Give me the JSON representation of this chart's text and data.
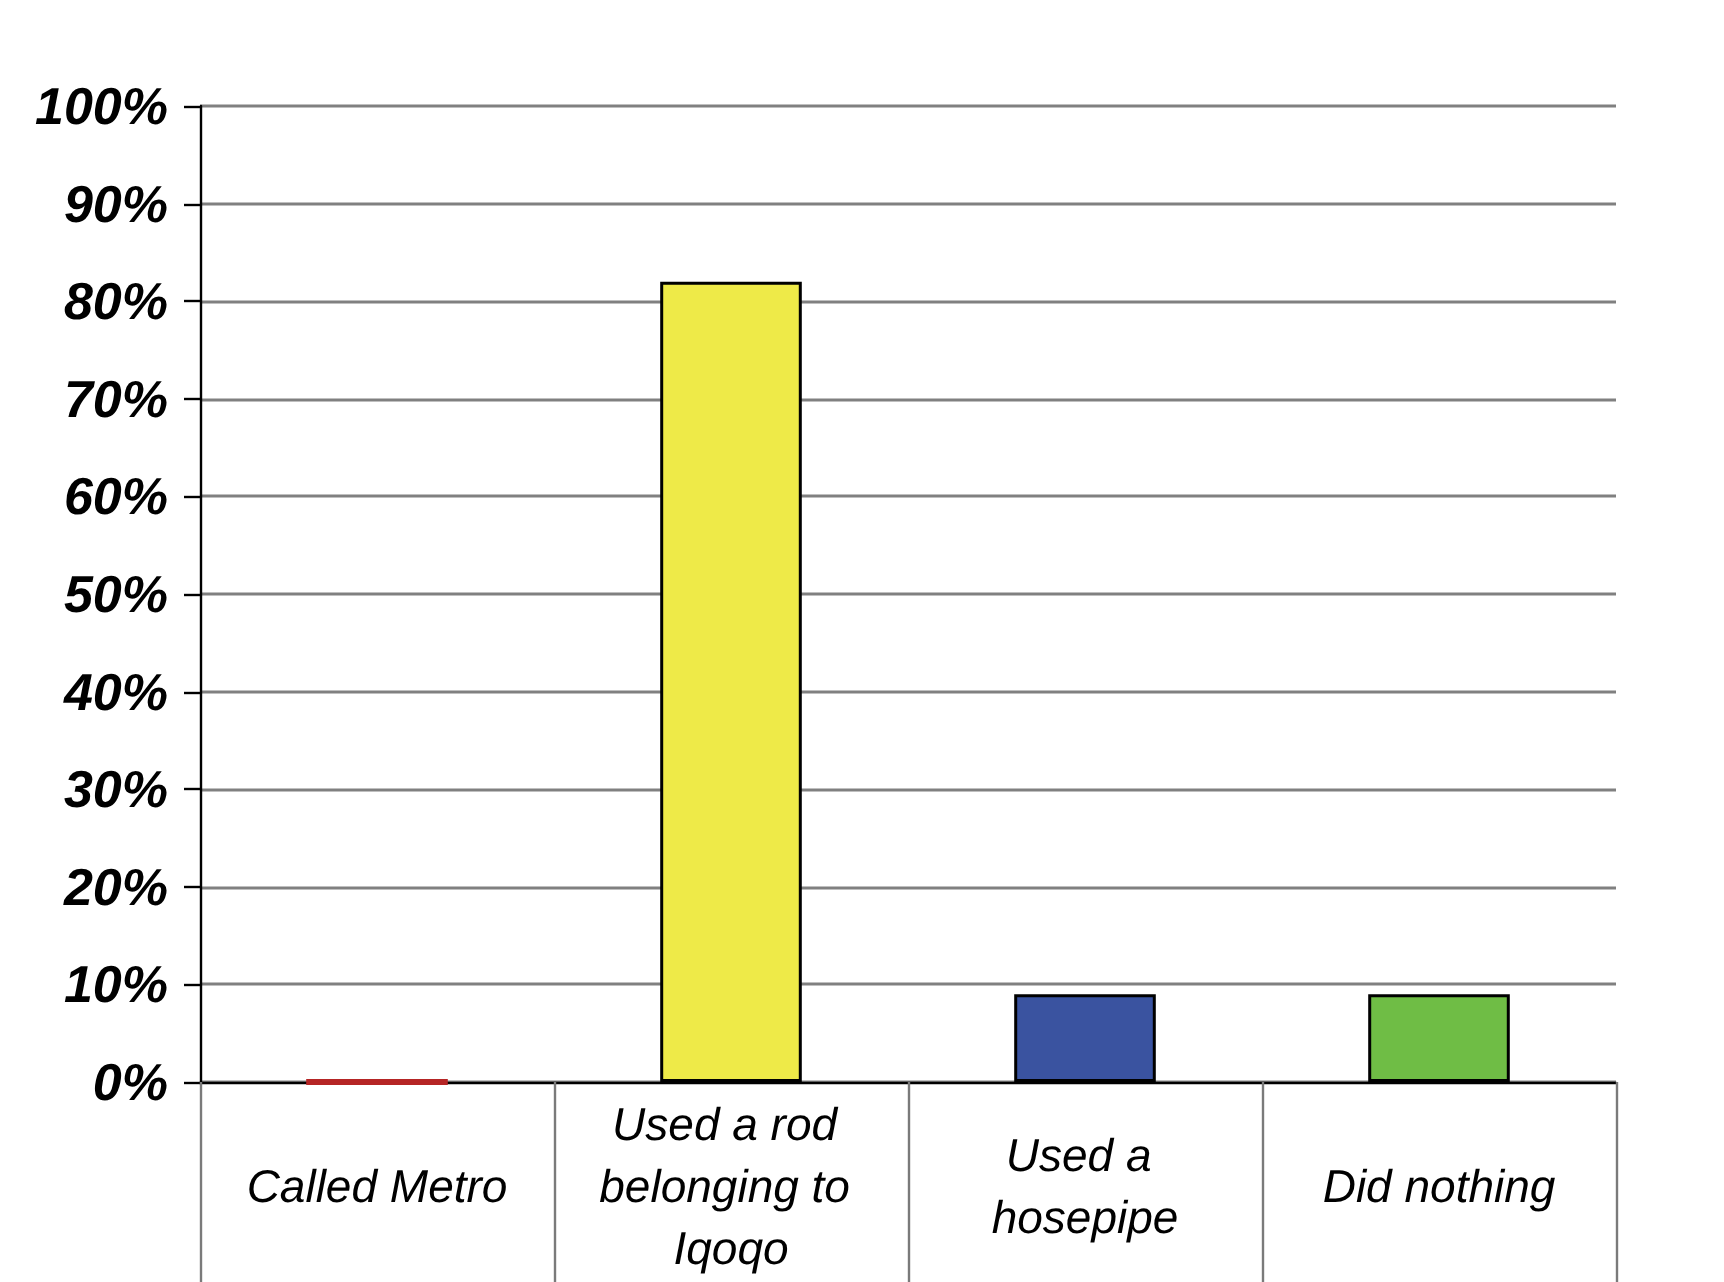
{
  "chart_data": {
    "type": "bar",
    "categories": [
      "Called Metro",
      "Used a rod belonging to Iqoqo",
      "Used a hosepipe",
      "Did nothing"
    ],
    "values": [
      0,
      82,
      9,
      9
    ],
    "colors": [
      "#b52525",
      "#eeea48",
      "#3a53a0",
      "#6fbd45"
    ],
    "ylim": [
      0,
      100
    ],
    "yticks": [
      {
        "value": 0,
        "label": "0%"
      },
      {
        "value": 10,
        "label": "10%"
      },
      {
        "value": 20,
        "label": "20%"
      },
      {
        "value": 30,
        "label": "30%"
      },
      {
        "value": 40,
        "label": "40%"
      },
      {
        "value": 50,
        "label": "50%"
      },
      {
        "value": 60,
        "label": "60%"
      },
      {
        "value": 70,
        "label": "70%"
      },
      {
        "value": 80,
        "label": "80%"
      },
      {
        "value": 90,
        "label": "90%"
      },
      {
        "value": 100,
        "label": "100%"
      }
    ],
    "grid": "y"
  }
}
